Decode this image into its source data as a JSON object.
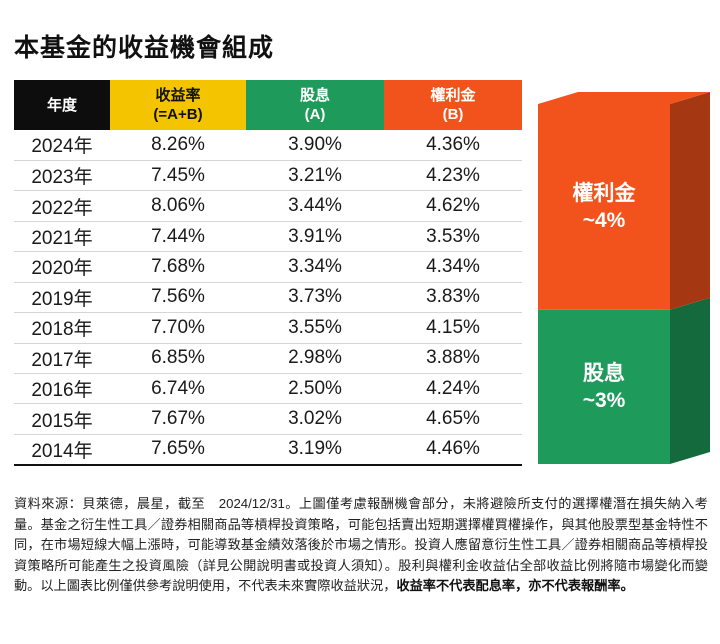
{
  "title": "本基金的收益機會組成",
  "table": {
    "headers": {
      "year": "年度",
      "total_line1": "收益率",
      "total_line2": "(=A+B)",
      "dividend_line1": "股息",
      "dividend_line2": "(A)",
      "premium_line1": "權利金",
      "premium_line2": "(B)"
    },
    "rows": [
      {
        "year": "2024年",
        "total": "8.26%",
        "dividend": "3.90%",
        "premium": "4.36%"
      },
      {
        "year": "2023年",
        "total": "7.45%",
        "dividend": "3.21%",
        "premium": "4.23%"
      },
      {
        "year": "2022年",
        "total": "8.06%",
        "dividend": "3.44%",
        "premium": "4.62%"
      },
      {
        "year": "2021年",
        "total": "7.44%",
        "dividend": "3.91%",
        "premium": "3.53%"
      },
      {
        "year": "2020年",
        "total": "7.68%",
        "dividend": "3.34%",
        "premium": "4.34%"
      },
      {
        "year": "2019年",
        "total": "7.56%",
        "dividend": "3.73%",
        "premium": "3.83%"
      },
      {
        "year": "2018年",
        "total": "7.70%",
        "dividend": "3.55%",
        "premium": "4.15%"
      },
      {
        "year": "2017年",
        "total": "6.85%",
        "dividend": "2.98%",
        "premium": "3.88%"
      },
      {
        "year": "2016年",
        "total": "6.74%",
        "dividend": "2.50%",
        "premium": "4.24%"
      },
      {
        "year": "2015年",
        "total": "7.67%",
        "dividend": "3.02%",
        "premium": "4.65%"
      },
      {
        "year": "2014年",
        "total": "7.65%",
        "dividend": "3.19%",
        "premium": "4.46%"
      }
    ]
  },
  "chart_data": {
    "type": "bar",
    "stacked": true,
    "categories": [
      ""
    ],
    "series": [
      {
        "name": "股息",
        "label_line1": "股息",
        "label_line2": "~3%",
        "values": [
          3
        ],
        "color": "#1e9a5a"
      },
      {
        "name": "權利金",
        "label_line1": "權利金",
        "label_line2": "~4%",
        "values": [
          4
        ],
        "color": "#f2521c"
      }
    ]
  },
  "footnote": {
    "text": "資料來源：貝萊德，晨星，截至　2024/12/31。上圖僅考慮報酬機會部分，未將避險所支付的選擇權潛在損失納入考量。基金之衍生性工具／證券相關商品等槓桿投資策略，可能包括賣出短期選擇權買權操作，與其他股票型基金特性不同，在市場短線大幅上漲時，可能導致基金績效落後於市場之情形。投資人應留意衍生性工具／證券相關商品等槓桿投資策略所可能產生之投資風險（詳見公開說明書或投資人須知）。股利與權利金收益佔全部收益比例將隨市場變化而變動。以上圖表比例僅供參考說明使用，不代表未來實際收益狀況，",
    "bold": "收益率不代表配息率，亦不代表報酬率。"
  },
  "colors": {
    "total_header": "#f5c400",
    "dividend": "#1e9a5a",
    "premium": "#f2521c",
    "year_header": "#0d0d0d"
  }
}
